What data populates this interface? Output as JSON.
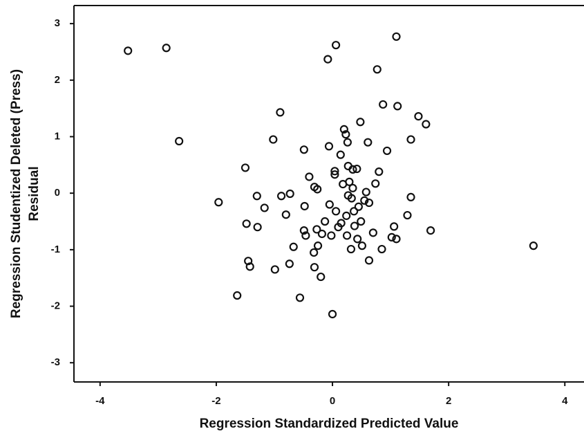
{
  "chart_data": {
    "type": "scatter",
    "xlabel": "Regression Standardized Predicted Value",
    "ylabel": [
      "Regression Studentized Deleted (Press)",
      "Residual"
    ],
    "xlim": [
      -4.45,
      4.33
    ],
    "ylim": [
      -3.34,
      3.32
    ],
    "xticks": [
      -4,
      -2,
      0,
      2,
      4
    ],
    "yticks": [
      -3,
      -2,
      -1,
      0,
      1,
      2,
      3
    ],
    "color": "#111111",
    "x": [
      -3.52,
      -2.86,
      -2.64,
      -1.96,
      -1.64,
      -1.5,
      -1.48,
      -1.45,
      -1.42,
      -1.3,
      -1.29,
      -1.17,
      -1.02,
      -0.99,
      -0.9,
      -0.88,
      -0.8,
      -0.73,
      -0.74,
      -0.67,
      -0.56,
      -0.49,
      -0.48,
      -0.49,
      -0.46,
      -0.4,
      -0.32,
      -0.31,
      -0.31,
      -0.26,
      -0.27,
      -0.25,
      -0.2,
      -0.18,
      -0.13,
      -0.08,
      -0.06,
      -0.05,
      -0.02,
      0,
      0.04,
      0.04,
      0.06,
      0.06,
      0.1,
      0.14,
      0.15,
      0.18,
      0.2,
      0.23,
      0.24,
      0.25,
      0.26,
      0.27,
      0.27,
      0.29,
      0.32,
      0.35,
      0.33,
      0.35,
      0.37,
      0.38,
      0.42,
      0.43,
      0.45,
      0.48,
      0.49,
      0.51,
      0.55,
      0.58,
      0.61,
      0.63,
      0.63,
      0.7,
      0.74,
      0.77,
      0.8,
      0.85,
      0.87,
      0.94,
      1.02,
      1.06,
      1.1,
      1.1,
      1.12,
      1.29,
      1.35,
      1.35,
      1.48,
      1.61,
      1.69,
      3.46
    ],
    "y": [
      2.52,
      2.57,
      0.92,
      -0.16,
      -1.81,
      0.45,
      -0.54,
      -1.2,
      -1.3,
      -0.05,
      -0.6,
      -0.26,
      0.95,
      -1.35,
      1.43,
      -0.05,
      -0.38,
      -0.01,
      -1.25,
      -0.95,
      -1.85,
      0.77,
      -0.23,
      -0.66,
      -0.75,
      0.29,
      -1.05,
      -1.31,
      0.11,
      0.07,
      -0.64,
      -0.93,
      -1.48,
      -0.72,
      -0.5,
      2.37,
      0.83,
      -0.2,
      -0.75,
      -2.14,
      0.33,
      0.39,
      2.62,
      -0.32,
      -0.6,
      0.68,
      -0.53,
      0.16,
      1.13,
      1.04,
      -0.4,
      -0.75,
      0.9,
      0.48,
      -0.04,
      0.2,
      -0.99,
      0.42,
      -0.09,
      0.09,
      -0.32,
      -0.58,
      0.43,
      -0.81,
      -0.24,
      1.26,
      -0.5,
      -0.93,
      -0.13,
      0.02,
      0.9,
      -0.17,
      -1.19,
      -0.7,
      0.17,
      2.19,
      0.38,
      -0.99,
      1.57,
      0.75,
      -0.78,
      -0.59,
      -0.81,
      2.77,
      1.54,
      -0.39,
      0.95,
      -0.07,
      1.36,
      1.22,
      -0.66,
      -0.93
    ]
  }
}
